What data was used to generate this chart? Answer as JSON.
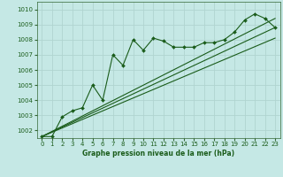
{
  "xlabel": "Graphe pression niveau de la mer (hPa)",
  "ylim": [
    1001.5,
    1010.5
  ],
  "xlim": [
    -0.5,
    23.5
  ],
  "yticks": [
    1002,
    1003,
    1004,
    1005,
    1006,
    1007,
    1008,
    1009,
    1010
  ],
  "xticks": [
    0,
    1,
    2,
    3,
    4,
    5,
    6,
    7,
    8,
    9,
    10,
    11,
    12,
    13,
    14,
    15,
    16,
    17,
    18,
    19,
    20,
    21,
    22,
    23
  ],
  "background_color": "#c5e8e5",
  "grid_color": "#b0d4d0",
  "line_color": "#1a5c1a",
  "series1": [
    1001.6,
    1001.6,
    1002.9,
    1003.3,
    1003.5,
    1005.0,
    1004.0,
    1007.0,
    1006.3,
    1008.0,
    1007.3,
    1008.1,
    1007.9,
    1007.5,
    1007.5,
    1007.5,
    1007.8,
    1007.8,
    1008.0,
    1008.5,
    1009.3,
    1009.7,
    1009.4,
    1008.8
  ],
  "line2_x": [
    0,
    23
  ],
  "line2_y": [
    1001.6,
    1008.8
  ],
  "line3_x": [
    0,
    23
  ],
  "line3_y": [
    1001.6,
    1008.1
  ],
  "line4_x": [
    0,
    23
  ],
  "line4_y": [
    1001.6,
    1009.4
  ],
  "lw": 0.8,
  "ms": 2.0,
  "tick_fontsize": 5.0,
  "xlabel_fontsize": 5.5
}
